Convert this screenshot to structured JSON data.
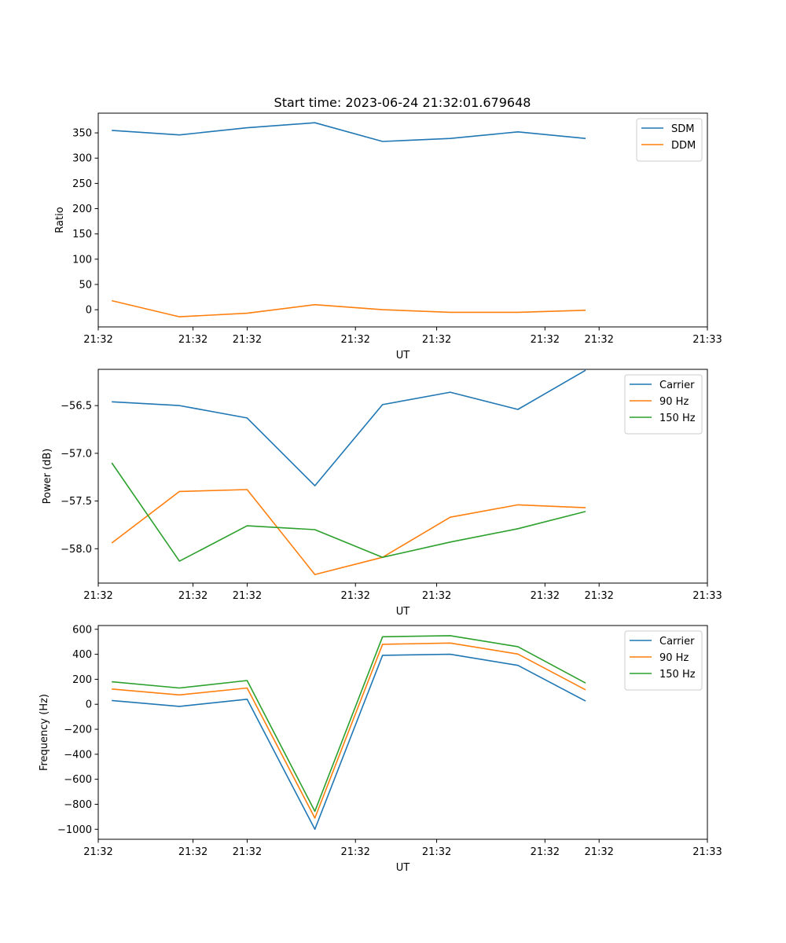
{
  "figure_title": "Start time: 2023-06-24 21:32:01.679648",
  "chart_data": [
    {
      "type": "line",
      "title": "Start time: 2023-06-24 21:32:01.679648",
      "xlabel": "UT",
      "ylabel": "Ratio",
      "x": [
        1,
        2,
        3,
        4,
        5,
        6,
        7,
        8
      ],
      "xticks": [
        0.8,
        2.2,
        3.0,
        4.6,
        5.8,
        7.4,
        8.2,
        9.8
      ],
      "xtick_labels": [
        "21:32",
        "21:32",
        "21:32",
        "21:32",
        "21:32",
        "21:32",
        "21:32",
        "21:33"
      ],
      "xlim": [
        0.8,
        9.8
      ],
      "ylim": [
        -34,
        389
      ],
      "yticks": [
        0,
        50,
        100,
        150,
        200,
        250,
        300,
        350
      ],
      "ytick_labels": [
        "0",
        "50",
        "100",
        "150",
        "200",
        "250",
        "300",
        "350"
      ],
      "legend_position": "top-right",
      "series": [
        {
          "name": "SDM",
          "color": "#1f77b4",
          "values": [
            355,
            346,
            360,
            370,
            333,
            339,
            352,
            339
          ]
        },
        {
          "name": "DDM",
          "color": "#ff7f0e",
          "values": [
            18,
            -14,
            -7,
            10,
            0,
            -5,
            -5,
            -1
          ]
        }
      ]
    },
    {
      "type": "line",
      "xlabel": "UT",
      "ylabel": "Power (dB)",
      "x": [
        1,
        2,
        3,
        4,
        5,
        6,
        7,
        8
      ],
      "xticks": [
        0.8,
        2.2,
        3.0,
        4.6,
        5.8,
        7.4,
        8.2,
        9.8
      ],
      "xtick_labels": [
        "21:32",
        "21:32",
        "21:32",
        "21:32",
        "21:32",
        "21:32",
        "21:32",
        "21:33"
      ],
      "xlim": [
        0.8,
        9.8
      ],
      "ylim": [
        -58.36,
        -56.12
      ],
      "yticks": [
        -58.0,
        -57.5,
        -57.0,
        -56.5
      ],
      "ytick_labels": [
        "−58.0",
        "−57.5",
        "−57.0",
        "−56.5"
      ],
      "legend_position": "top-right",
      "series": [
        {
          "name": "Carrier",
          "color": "#1f77b4",
          "values": [
            -56.46,
            -56.5,
            -56.63,
            -57.34,
            -56.49,
            -56.36,
            -56.54,
            -56.13
          ]
        },
        {
          "name": "90 Hz",
          "color": "#ff7f0e",
          "values": [
            -57.94,
            -57.4,
            -57.38,
            -58.27,
            -58.09,
            -57.67,
            -57.54,
            -57.57
          ]
        },
        {
          "name": "150 Hz",
          "color": "#2ca02c",
          "values": [
            -57.1,
            -58.13,
            -57.76,
            -57.8,
            -58.09,
            -57.93,
            -57.79,
            -57.61
          ]
        }
      ]
    },
    {
      "type": "line",
      "xlabel": "UT",
      "ylabel": "Frequency (Hz)",
      "x": [
        1,
        2,
        3,
        4,
        5,
        6,
        7,
        8
      ],
      "xticks": [
        0.8,
        2.2,
        3.0,
        4.6,
        5.8,
        7.4,
        8.2,
        9.8
      ],
      "xtick_labels": [
        "21:32",
        "21:32",
        "21:32",
        "21:32",
        "21:32",
        "21:32",
        "21:32",
        "21:33"
      ],
      "xlim": [
        0.8,
        9.8
      ],
      "ylim": [
        -1080,
        630
      ],
      "yticks": [
        -1000,
        -800,
        -600,
        -400,
        -200,
        0,
        200,
        400,
        600
      ],
      "ytick_labels": [
        "−1000",
        "−800",
        "−600",
        "−400",
        "−200",
        "0",
        "200",
        "400",
        "600"
      ],
      "legend_position": "top-right",
      "series": [
        {
          "name": "Carrier",
          "color": "#1f77b4",
          "values": [
            30,
            -17,
            40,
            -1000,
            392,
            400,
            311,
            26
          ]
        },
        {
          "name": "90 Hz",
          "color": "#ff7f0e",
          "values": [
            122,
            75,
            130,
            -910,
            480,
            490,
            402,
            116
          ]
        },
        {
          "name": "150 Hz",
          "color": "#2ca02c",
          "values": [
            180,
            130,
            190,
            -856,
            540,
            549,
            461,
            170
          ]
        }
      ]
    }
  ]
}
